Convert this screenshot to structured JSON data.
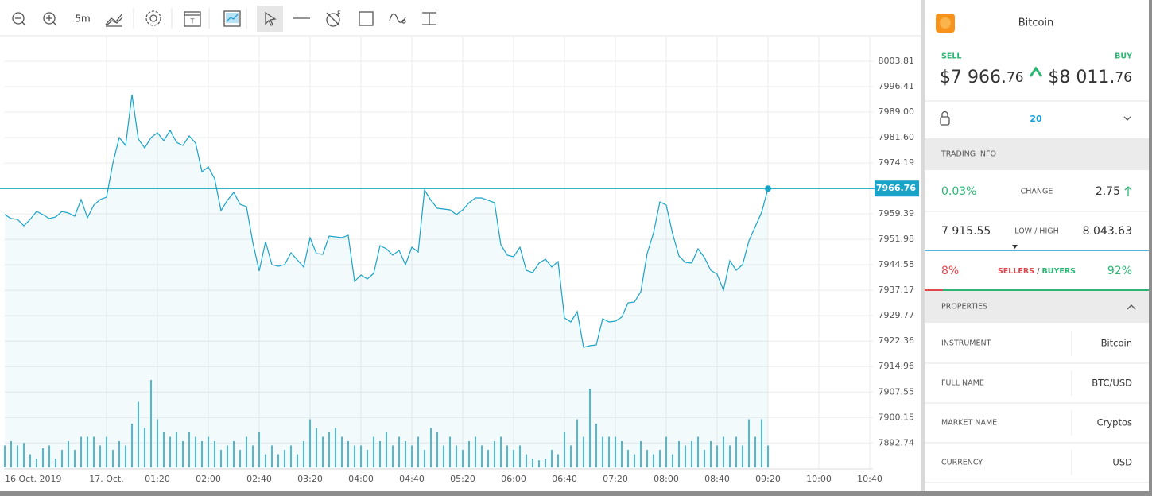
{
  "toolbar": {
    "interval": "5m"
  },
  "chart_data": {
    "type": "line",
    "color": "#1aa3c8",
    "grid": true,
    "x": [
      -1,
      -0.875,
      -0.75,
      -0.625,
      -0.5,
      -0.375,
      -0.25,
      -0.125,
      0,
      0.125,
      0.25,
      0.375,
      0.5,
      0.625,
      0.75,
      0.875,
      1,
      1.125,
      1.25,
      1.375,
      1.5,
      1.625,
      1.75,
      1.875,
      2,
      2.125,
      2.25,
      2.375,
      2.5,
      2.625,
      2.75,
      2.875,
      3,
      3.125,
      3.25,
      3.375,
      3.5,
      3.625,
      3.75,
      3.875,
      4,
      4.125,
      4.25,
      4.375,
      4.5,
      4.625,
      4.75,
      4.875,
      5,
      5.125,
      5.25,
      5.375,
      5.5,
      5.625,
      5.75,
      5.875,
      6,
      6.125,
      6.25,
      6.375,
      6.5,
      6.625,
      6.75,
      6.875,
      7,
      7.125,
      7.25,
      7.375,
      7.5,
      7.625,
      7.75,
      7.875,
      8,
      8.125,
      8.25,
      8.375,
      8.5,
      8.625,
      8.75,
      8.875,
      9,
      9.125,
      9.25,
      9.375,
      9.5,
      9.625,
      9.75,
      9.875,
      10,
      10.125,
      10.25,
      10.375,
      10.5,
      10.625,
      10.75,
      10.875,
      11,
      11.125,
      11.25,
      11.375,
      11.5,
      11.625,
      11.75,
      11.875,
      12,
      12.125,
      12.25,
      12.375,
      12.5,
      12.625,
      12.75,
      12.875,
      13,
      13.125,
      13.25,
      13.375,
      13.5,
      13.625,
      13.75,
      13.875,
      14
    ],
    "values": [
      7959.18,
      7958.02,
      7957.79,
      7955.94,
      7957.79,
      7960.1,
      7959.18,
      7958.02,
      7958.48,
      7960.1,
      7959.64,
      7958.72,
      7963.57,
      7958.25,
      7961.95,
      7963.57,
      7964.27,
      7974.21,
      7981.61,
      7979.3,
      7994.1,
      7981.15,
      7978.6,
      7981.61,
      7983.0,
      7980.68,
      7983.69,
      7980.22,
      7979.3,
      7982.07,
      7979.99,
      7971.67,
      7973.05,
      7969.58,
      7960.33,
      7963.34,
      7965.65,
      7962.18,
      7961.49,
      7951.08,
      7942.76,
      7951.32,
      7944.61,
      7944.15,
      7944.61,
      7948.08,
      7946.0,
      7943.92,
      7952.47,
      7947.85,
      7947.62,
      7952.93,
      7952.7,
      7952.47,
      7953.17,
      7939.75,
      7941.6,
      7940.45,
      7942.07,
      7950.16,
      7949.23,
      7947.38,
      7948.77,
      7944.61,
      7949.7,
      7948.31,
      7966.35,
      7963.34,
      7961.03,
      7960.8,
      7960.57,
      7959.18,
      7960.57,
      7962.65,
      7964.03,
      7964.03,
      7963.34,
      7962.65,
      7950.39,
      7947.38,
      7946.92,
      7949.7,
      7942.99,
      7942.3,
      7945.07,
      7946.23,
      7943.92,
      7945.53,
      7929.12,
      7927.96,
      7930.97,
      7920.56,
      7921.02,
      7921.25,
      7928.88,
      7927.96,
      7928.19,
      7929.35,
      7933.51,
      7933.74,
      7936.75,
      7947.85,
      7953.86,
      7962.88,
      7961.95,
      7953.63,
      7947.15,
      7945.3,
      7945.07,
      7949.23,
      7946.69,
      7942.99,
      7941.83,
      7937.21,
      7945.77,
      7942.99,
      7944.61,
      7951.55,
      7955.71,
      7959.87,
      7966.76
    ],
    "volume": [
      25,
      30,
      25,
      28,
      15,
      10,
      22,
      25,
      10,
      20,
      30,
      20,
      35,
      35,
      35,
      25,
      35,
      20,
      30,
      25,
      50,
      75,
      45,
      100,
      55,
      40,
      35,
      40,
      30,
      40,
      35,
      30,
      35,
      30,
      20,
      25,
      30,
      20,
      35,
      25,
      40,
      15,
      25,
      15,
      20,
      25,
      15,
      30,
      55,
      45,
      35,
      40,
      45,
      35,
      30,
      25,
      25,
      20,
      35,
      30,
      40,
      25,
      35,
      30,
      25,
      35,
      20,
      45,
      40,
      25,
      35,
      25,
      20,
      30,
      35,
      25,
      20,
      30,
      35,
      25,
      20,
      25,
      15,
      10,
      8,
      10,
      20,
      15,
      40,
      25,
      55,
      35,
      90,
      50,
      35,
      35,
      35,
      30,
      20,
      15,
      30,
      20,
      15,
      20,
      35,
      15,
      30,
      25,
      30,
      35,
      20,
      30,
      25,
      35,
      25,
      35,
      25,
      55,
      35,
      55,
      25
    ],
    "volume_lim": [
      0,
      100
    ],
    "current_price": 7966.76,
    "xlim": [
      -1.015625,
      16.0625
    ],
    "ylim": [
      7885.18,
      8011.21
    ],
    "xticks": [
      {
        "value": 0,
        "label": "16 Oct. 2019"
      },
      {
        "value": 1,
        "label": "17. Oct."
      },
      {
        "value": 2,
        "label": "01:20"
      },
      {
        "value": 3,
        "label": "02:00"
      },
      {
        "value": 4,
        "label": "02:40"
      },
      {
        "value": 5,
        "label": "03:20"
      },
      {
        "value": 6,
        "label": "04:00"
      },
      {
        "value": 7,
        "label": "04:40"
      },
      {
        "value": 8,
        "label": "05:20"
      },
      {
        "value": 9,
        "label": "06:00"
      },
      {
        "value": 10,
        "label": "06:40"
      },
      {
        "value": 11,
        "label": "07:20"
      },
      {
        "value": 12,
        "label": "08:00"
      },
      {
        "value": 13,
        "label": "08:40"
      },
      {
        "value": 14,
        "label": "09:20"
      },
      {
        "value": 15,
        "label": "10:00"
      },
      {
        "value": 16,
        "label": "10:40"
      }
    ],
    "yticks": [
      8003.81,
      7996.41,
      {
        "value": 7989,
        "label": "7989.00"
      },
      {
        "value": 7981.6,
        "label": "7981.60"
      },
      7974.19,
      7959.39,
      7951.98,
      7944.58,
      7937.17,
      7929.77,
      7922.36,
      7914.96,
      7907.55,
      7900.15,
      7892.74
    ]
  },
  "instrument_panel": {
    "title": "Bitcoin",
    "sell_label": "SELL",
    "buy_label": "BUY",
    "sell_price": {
      "main": "$7 966.",
      "cents": "76"
    },
    "buy_price": {
      "main": "$8 011.",
      "cents": "76"
    },
    "leverage": "20",
    "trading_info": {
      "heading": "TRADING INFO",
      "change_percent": "0.03%",
      "change_label": "CHANGE",
      "change_value": "2.75",
      "low": "7 915.55",
      "low_high_label": "LOW / HIGH",
      "high": "8 043.63",
      "sellers_percent": "8%",
      "sellers_label": "SELLERS",
      "separator": "/",
      "buyers_label": "BUYERS",
      "buyers_percent": "92%"
    },
    "properties": {
      "heading": "PROPERTIES",
      "rows": [
        [
          "INSTRUMENT",
          "Bitcoin"
        ],
        [
          "FULL NAME",
          "BTC/USD"
        ],
        [
          "MARKET NAME",
          "Cryptos"
        ],
        [
          "CURRENCY",
          "USD"
        ]
      ]
    }
  }
}
